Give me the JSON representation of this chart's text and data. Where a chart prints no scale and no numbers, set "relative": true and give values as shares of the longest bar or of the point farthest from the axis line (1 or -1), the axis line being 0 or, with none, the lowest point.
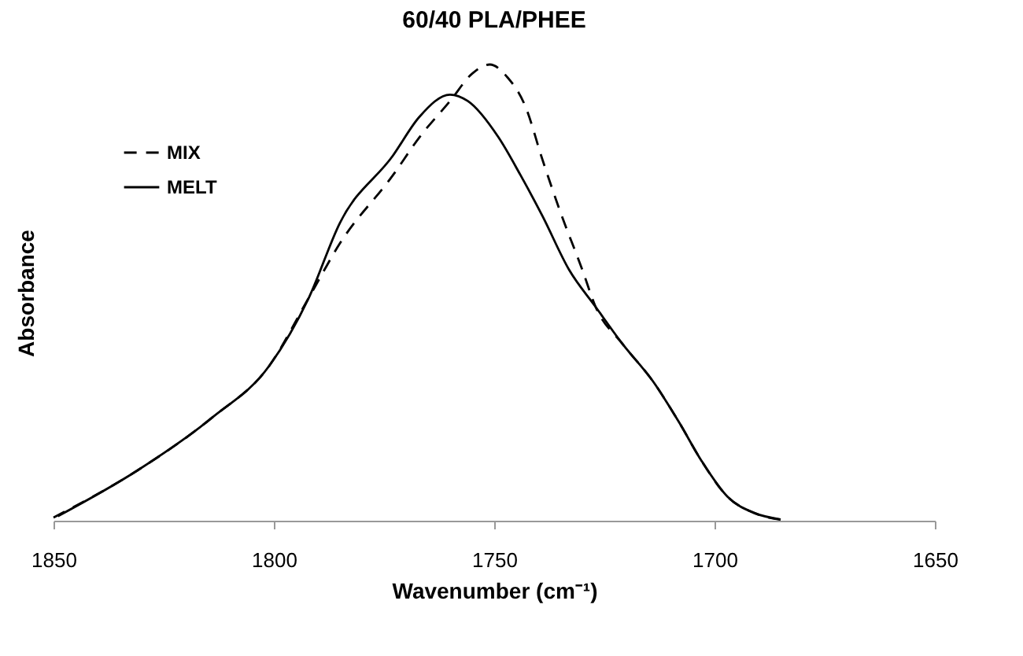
{
  "chart_data": {
    "type": "line",
    "title": "60/40 PLA/PHEE",
    "xlabel": "Wavenumber (cm⁻¹)",
    "ylabel": "Absorbance",
    "relative": true,
    "xlim": [
      1850,
      1650
    ],
    "xticks": [
      {
        "value": 1850,
        "label": "1850"
      },
      {
        "value": 1800,
        "label": "1800"
      },
      {
        "value": 1750,
        "label": "1750"
      },
      {
        "value": 1700,
        "label": "1700"
      },
      {
        "value": 1650,
        "label": "1650"
      }
    ],
    "legend": "top left",
    "grid": false,
    "series": [
      {
        "name": "MIX",
        "color": "#000000",
        "line_style": "dashed",
        "x": [
          1850,
          1831,
          1814,
          1801,
          1792,
          1785,
          1773,
          1767,
          1760,
          1755,
          1751,
          1747,
          1743,
          1739,
          1735,
          1730,
          1727,
          1721,
          1714,
          1708,
          1703,
          1697,
          1691,
          1683
        ],
        "values": [
          0.007,
          0.11,
          0.226,
          0.34,
          0.49,
          0.608,
          0.757,
          0.84,
          0.92,
          0.98,
          1.0,
          0.972,
          0.91,
          0.79,
          0.677,
          0.55,
          0.469,
          0.389,
          0.306,
          0.215,
          0.132,
          0.052,
          0.017,
          0.0
        ]
      },
      {
        "name": "MELT",
        "color": "#000000",
        "line_style": "solid",
        "x": [
          1849,
          1831,
          1814,
          1801,
          1792,
          1785,
          1773,
          1767,
          1760,
          1756,
          1749,
          1744,
          1739,
          1733,
          1727,
          1721,
          1714,
          1708,
          1703,
          1697,
          1691,
          1685
        ],
        "values": [
          0.01,
          0.11,
          0.226,
          0.34,
          0.49,
          0.653,
          0.8,
          0.885,
          0.934,
          0.92,
          0.84,
          0.757,
          0.667,
          0.55,
          0.469,
          0.389,
          0.306,
          0.215,
          0.132,
          0.052,
          0.017,
          0.003
        ]
      }
    ]
  }
}
